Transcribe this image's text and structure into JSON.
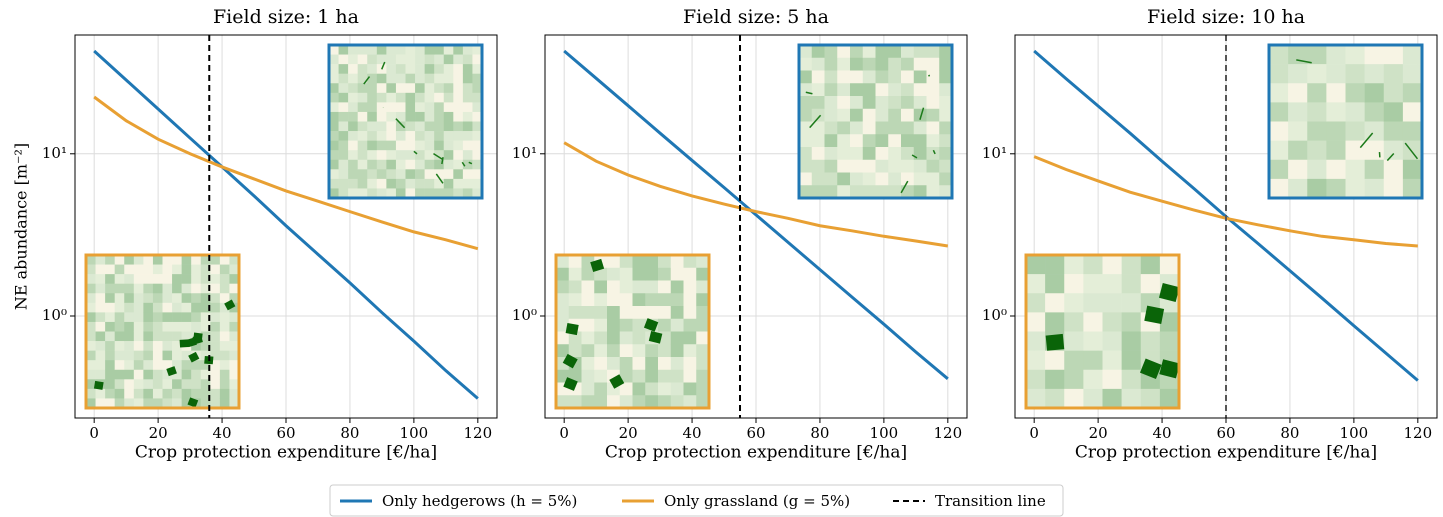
{
  "chart_data": [
    {
      "type": "line",
      "title": "Field size: 1 ha",
      "xlabel": "Crop protection expenditure [€/ha]",
      "ylabel": "NE abundance [m⁻²]",
      "x": [
        0,
        10,
        20,
        30,
        40,
        50,
        60,
        70,
        80,
        90,
        100,
        110,
        120
      ],
      "series": [
        {
          "name": "Only hedgerows (h = 5%)",
          "color": "#1f77b4",
          "values": [
            43,
            28.5,
            18.9,
            12.5,
            8.3,
            5.5,
            3.6,
            2.4,
            1.6,
            1.05,
            0.7,
            0.46,
            0.31
          ]
        },
        {
          "name": "Only grassland (g = 5%)",
          "color": "#e8a033",
          "values": [
            22.4,
            16,
            12.3,
            10,
            8.3,
            7,
            5.9,
            5.1,
            4.4,
            3.8,
            3.3,
            2.95,
            2.6
          ]
        }
      ],
      "vline": 36,
      "vline_color": "#000000",
      "xlim": [
        -6,
        126
      ],
      "xticks": [
        0,
        20,
        40,
        60,
        80,
        100,
        120
      ],
      "ylim": [
        0.235,
        54
      ],
      "yticks": [
        {
          "value": 1,
          "label": "10⁰"
        },
        {
          "value": 10,
          "label": "10¹"
        }
      ],
      "yscale": "log",
      "grid": true
    },
    {
      "type": "line",
      "title": "Field size: 5 ha",
      "xlabel": "Crop protection expenditure [€/ha]",
      "x": [
        0,
        10,
        20,
        30,
        40,
        50,
        60,
        70,
        80,
        90,
        100,
        110,
        120
      ],
      "series": [
        {
          "name": "Only hedgerows (h = 5%)",
          "color": "#1f77b4",
          "values": [
            43,
            29.2,
            19.8,
            13.4,
            9.1,
            6.2,
            4.2,
            2.85,
            1.93,
            1.31,
            0.89,
            0.6,
            0.41
          ]
        },
        {
          "name": "Only grassland (g = 5%)",
          "color": "#e8a033",
          "values": [
            11.7,
            9,
            7.4,
            6.3,
            5.5,
            4.9,
            4.4,
            4,
            3.6,
            3.35,
            3.1,
            2.9,
            2.7
          ]
        }
      ],
      "vline": 55,
      "vline_color": "#000000",
      "xlim": [
        -6,
        126
      ],
      "xticks": [
        0,
        20,
        40,
        60,
        80,
        100,
        120
      ],
      "ylim": [
        0.235,
        54
      ],
      "yticks": [
        {
          "value": 1,
          "label": "10⁰"
        },
        {
          "value": 10,
          "label": "10¹"
        }
      ],
      "yscale": "log",
      "grid": true
    },
    {
      "type": "line",
      "title": "Field size: 10 ha",
      "xlabel": "Crop protection expenditure [€/ha]",
      "x": [
        0,
        10,
        20,
        30,
        40,
        50,
        60,
        70,
        80,
        90,
        100,
        110,
        120
      ],
      "series": [
        {
          "name": "Only hedgerows (h = 5%)",
          "color": "#1f77b4",
          "values": [
            43,
            29,
            19.7,
            13.4,
            9,
            6.1,
            4.1,
            2.8,
            1.9,
            1.29,
            0.87,
            0.59,
            0.4
          ]
        },
        {
          "name": "Only grassland (g = 5%)",
          "color": "#e8a033",
          "values": [
            9.6,
            8,
            6.8,
            5.8,
            5.1,
            4.5,
            4,
            3.65,
            3.35,
            3.1,
            2.95,
            2.8,
            2.7
          ]
        }
      ],
      "vline": 60,
      "vline_color": "#555555",
      "xlim": [
        -6,
        126
      ],
      "xticks": [
        0,
        20,
        40,
        60,
        80,
        100,
        120
      ],
      "ylim": [
        0.235,
        54
      ],
      "yticks": [
        {
          "value": 1,
          "label": "10⁰"
        },
        {
          "value": 10,
          "label": "10¹"
        }
      ],
      "yscale": "log",
      "grid": true
    }
  ],
  "legend": {
    "vline_label": "Transition line",
    "position": "lower center"
  }
}
